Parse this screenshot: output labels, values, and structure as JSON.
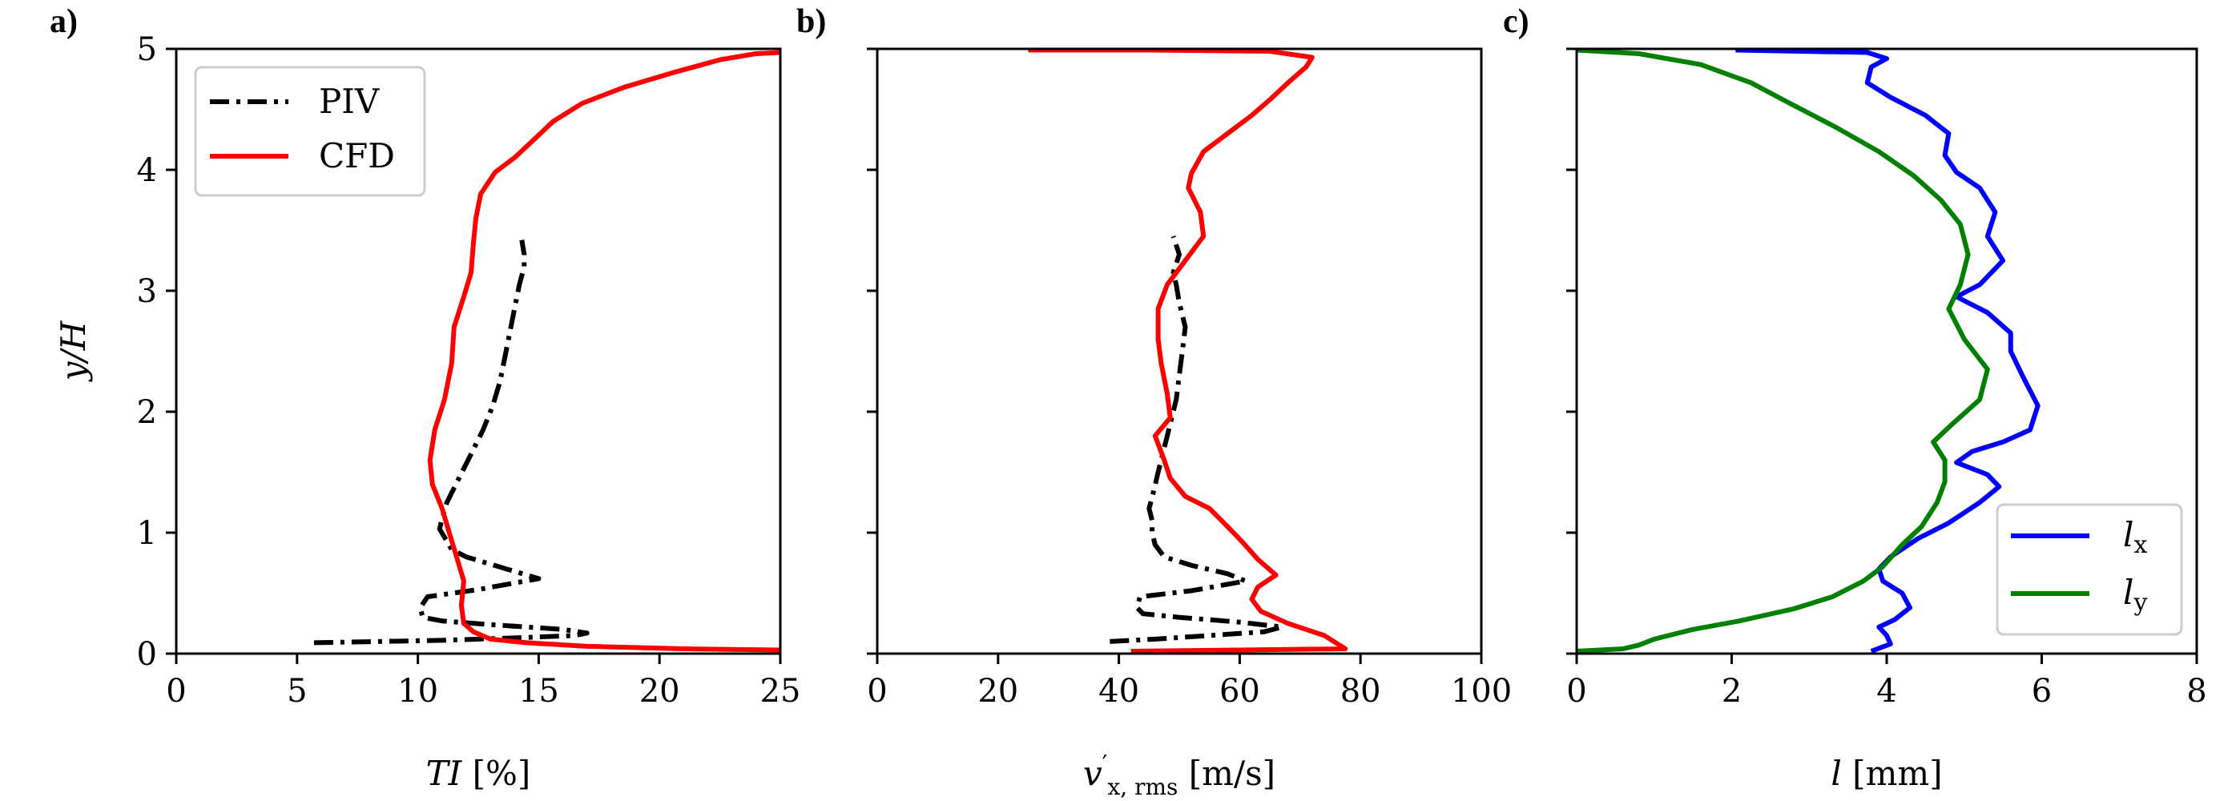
{
  "chart_data": [
    {
      "type": "line",
      "panel_label": "a)",
      "xlabel": "TI [%]",
      "xlabel_parts": {
        "main": "TI",
        "unit": " [%]"
      },
      "ylabel": "y/H",
      "ylabel_parts": {
        "main": "y/H"
      },
      "xlim": [
        0,
        25
      ],
      "ylim": [
        0,
        5
      ],
      "xticks": [
        0,
        5,
        10,
        15,
        20,
        25
      ],
      "xtick_labels": [
        "0",
        "5",
        "10",
        "15",
        "20",
        "25"
      ],
      "yticks": [
        0,
        1,
        2,
        3,
        4,
        5
      ],
      "ytick_labels": [
        "0",
        "1",
        "2",
        "3",
        "4",
        "5"
      ],
      "show_ytick_labels": true,
      "grid": false,
      "legend": {
        "placement": "top-left",
        "entries": [
          "PIV",
          "CFD"
        ]
      },
      "series": [
        {
          "name": "PIV",
          "color": "#000000",
          "style": "dashdot",
          "points": [
            [
              5.7,
              0.09
            ],
            [
              11.0,
              0.11
            ],
            [
              14.0,
              0.13
            ],
            [
              16.5,
              0.15
            ],
            [
              17.0,
              0.17
            ],
            [
              16.0,
              0.2
            ],
            [
              13.0,
              0.24
            ],
            [
              11.0,
              0.27
            ],
            [
              10.2,
              0.3
            ],
            [
              10.1,
              0.38
            ],
            [
              10.4,
              0.47
            ],
            [
              12.5,
              0.53
            ],
            [
              15.0,
              0.62
            ],
            [
              14.0,
              0.68
            ],
            [
              13.0,
              0.74
            ],
            [
              12.0,
              0.8
            ],
            [
              11.4,
              0.86
            ],
            [
              11.2,
              0.93
            ],
            [
              10.9,
              1.03
            ],
            [
              11.0,
              1.12
            ],
            [
              11.2,
              1.25
            ],
            [
              11.7,
              1.45
            ],
            [
              12.2,
              1.65
            ],
            [
              12.7,
              1.85
            ],
            [
              13.1,
              2.05
            ],
            [
              13.4,
              2.25
            ],
            [
              13.6,
              2.45
            ],
            [
              13.8,
              2.65
            ],
            [
              14.0,
              2.85
            ],
            [
              14.2,
              3.05
            ],
            [
              14.4,
              3.2
            ],
            [
              14.4,
              3.3
            ],
            [
              14.3,
              3.42
            ]
          ]
        },
        {
          "name": "CFD",
          "color": "#ff0000",
          "style": "solid",
          "points": [
            [
              25.0,
              0.03
            ],
            [
              21.0,
              0.04
            ],
            [
              17.0,
              0.06
            ],
            [
              14.5,
              0.09
            ],
            [
              13.0,
              0.12
            ],
            [
              12.3,
              0.18
            ],
            [
              11.9,
              0.25
            ],
            [
              11.8,
              0.4
            ],
            [
              11.9,
              0.6
            ],
            [
              11.6,
              0.8
            ],
            [
              11.3,
              1.0
            ],
            [
              11.0,
              1.2
            ],
            [
              10.6,
              1.4
            ],
            [
              10.5,
              1.6
            ],
            [
              10.7,
              1.85
            ],
            [
              11.1,
              2.1
            ],
            [
              11.4,
              2.4
            ],
            [
              11.5,
              2.7
            ],
            [
              11.9,
              2.95
            ],
            [
              12.2,
              3.15
            ],
            [
              12.3,
              3.4
            ],
            [
              12.4,
              3.6
            ],
            [
              12.6,
              3.8
            ],
            [
              13.2,
              3.98
            ],
            [
              14.0,
              4.1
            ],
            [
              14.8,
              4.25
            ],
            [
              15.6,
              4.4
            ],
            [
              16.8,
              4.55
            ],
            [
              18.5,
              4.68
            ],
            [
              20.5,
              4.8
            ],
            [
              22.5,
              4.91
            ],
            [
              24.0,
              4.96
            ],
            [
              25.0,
              4.97
            ]
          ]
        }
      ]
    },
    {
      "type": "line",
      "panel_label": "b)",
      "xlabel": "v'x, rms [m/s]",
      "xlabel_parts": {
        "main": "v",
        "prime": "′",
        "sub": "x, rms",
        "unit": " [m/s]"
      },
      "ylabel": "",
      "xlim": [
        0,
        100
      ],
      "ylim": [
        0,
        5
      ],
      "xticks": [
        0,
        20,
        40,
        60,
        80,
        100
      ],
      "xtick_labels": [
        "0",
        "20",
        "40",
        "60",
        "80",
        "100"
      ],
      "yticks": [
        0,
        1,
        2,
        3,
        4,
        5
      ],
      "show_ytick_labels": false,
      "grid": false,
      "series": [
        {
          "name": "PIV",
          "color": "#000000",
          "style": "dashdot",
          "points": [
            [
              38.5,
              0.1
            ],
            [
              46.0,
              0.12
            ],
            [
              55.0,
              0.15
            ],
            [
              64.0,
              0.18
            ],
            [
              67.0,
              0.22
            ],
            [
              60.0,
              0.26
            ],
            [
              50.0,
              0.3
            ],
            [
              44.0,
              0.33
            ],
            [
              43.0,
              0.38
            ],
            [
              43.5,
              0.47
            ],
            [
              52.0,
              0.52
            ],
            [
              61.0,
              0.6
            ],
            [
              58.0,
              0.66
            ],
            [
              52.0,
              0.73
            ],
            [
              47.5,
              0.8
            ],
            [
              46.0,
              0.9
            ],
            [
              45.5,
              1.0
            ],
            [
              45.5,
              1.1
            ],
            [
              45.0,
              1.2
            ],
            [
              45.8,
              1.35
            ],
            [
              46.5,
              1.5
            ],
            [
              47.5,
              1.7
            ],
            [
              48.5,
              1.9
            ],
            [
              49.5,
              2.1
            ],
            [
              50.0,
              2.3
            ],
            [
              50.5,
              2.5
            ],
            [
              51.0,
              2.7
            ],
            [
              50.0,
              2.9
            ],
            [
              49.5,
              3.05
            ],
            [
              49.0,
              3.15
            ],
            [
              50.0,
              3.3
            ],
            [
              49.0,
              3.45
            ]
          ]
        },
        {
          "name": "CFD",
          "color": "#ff0000",
          "style": "solid",
          "points": [
            [
              42.0,
              0.02
            ],
            [
              60.0,
              0.03
            ],
            [
              77.5,
              0.04
            ],
            [
              74.0,
              0.15
            ],
            [
              68.0,
              0.25
            ],
            [
              63.5,
              0.35
            ],
            [
              62.0,
              0.45
            ],
            [
              63.0,
              0.55
            ],
            [
              66.0,
              0.65
            ],
            [
              63.0,
              0.78
            ],
            [
              60.5,
              0.92
            ],
            [
              58.0,
              1.05
            ],
            [
              55.0,
              1.2
            ],
            [
              51.0,
              1.3
            ],
            [
              48.5,
              1.45
            ],
            [
              47.5,
              1.6
            ],
            [
              46.0,
              1.8
            ],
            [
              48.5,
              1.95
            ],
            [
              48.0,
              2.15
            ],
            [
              47.0,
              2.4
            ],
            [
              46.5,
              2.6
            ],
            [
              46.5,
              2.85
            ],
            [
              48.0,
              3.05
            ],
            [
              51.0,
              3.25
            ],
            [
              54.0,
              3.45
            ],
            [
              53.5,
              3.65
            ],
            [
              51.5,
              3.85
            ],
            [
              52.0,
              3.97
            ],
            [
              54.0,
              4.15
            ],
            [
              58.0,
              4.3
            ],
            [
              62.0,
              4.45
            ],
            [
              65.0,
              4.58
            ],
            [
              68.0,
              4.72
            ],
            [
              71.0,
              4.85
            ],
            [
              72.0,
              4.93
            ],
            [
              65.0,
              4.98
            ],
            [
              45.0,
              4.99
            ],
            [
              25.0,
              4.99
            ]
          ]
        }
      ]
    },
    {
      "type": "line",
      "panel_label": "c)",
      "xlabel": "l [mm]",
      "xlabel_parts": {
        "main": "l",
        "unit": " [mm]"
      },
      "ylabel": "",
      "xlim": [
        0,
        8
      ],
      "ylim": [
        0,
        5
      ],
      "xticks": [
        0,
        2,
        4,
        6,
        8
      ],
      "xtick_labels": [
        "0",
        "2",
        "4",
        "6",
        "8"
      ],
      "yticks": [
        0,
        1,
        2,
        3,
        4,
        5
      ],
      "show_ytick_labels": false,
      "grid": false,
      "legend": {
        "placement": "bottom-right",
        "entries": [
          "lx",
          "ly"
        ]
      },
      "series": [
        {
          "name": "lx",
          "legend_main": "l",
          "legend_sub": "x",
          "color": "#0000ff",
          "style": "solid",
          "points": [
            [
              3.8,
              0.02
            ],
            [
              4.05,
              0.08
            ],
            [
              4.0,
              0.15
            ],
            [
              3.9,
              0.22
            ],
            [
              4.1,
              0.28
            ],
            [
              4.3,
              0.38
            ],
            [
              4.2,
              0.5
            ],
            [
              3.95,
              0.6
            ],
            [
              3.9,
              0.7
            ],
            [
              4.05,
              0.8
            ],
            [
              4.4,
              0.95
            ],
            [
              4.8,
              1.08
            ],
            [
              5.2,
              1.25
            ],
            [
              5.45,
              1.38
            ],
            [
              5.3,
              1.48
            ],
            [
              4.9,
              1.58
            ],
            [
              5.1,
              1.67
            ],
            [
              5.5,
              1.75
            ],
            [
              5.85,
              1.85
            ],
            [
              5.95,
              2.05
            ],
            [
              5.75,
              2.3
            ],
            [
              5.6,
              2.5
            ],
            [
              5.6,
              2.65
            ],
            [
              5.3,
              2.82
            ],
            [
              4.9,
              2.95
            ],
            [
              5.2,
              3.05
            ],
            [
              5.5,
              3.25
            ],
            [
              5.3,
              3.45
            ],
            [
              5.4,
              3.65
            ],
            [
              5.2,
              3.85
            ],
            [
              4.9,
              3.98
            ],
            [
              4.75,
              4.12
            ],
            [
              4.8,
              4.3
            ],
            [
              4.5,
              4.45
            ],
            [
              4.05,
              4.6
            ],
            [
              3.75,
              4.72
            ],
            [
              3.8,
              4.85
            ],
            [
              4.0,
              4.92
            ],
            [
              3.75,
              4.97
            ],
            [
              2.05,
              4.99
            ]
          ]
        },
        {
          "name": "ly",
          "legend_main": "l",
          "legend_sub": "y",
          "color": "#008000",
          "style": "solid",
          "points": [
            [
              0.0,
              0.02
            ],
            [
              0.6,
              0.04
            ],
            [
              0.8,
              0.07
            ],
            [
              1.0,
              0.12
            ],
            [
              1.5,
              0.2
            ],
            [
              2.1,
              0.27
            ],
            [
              2.8,
              0.37
            ],
            [
              3.3,
              0.47
            ],
            [
              3.7,
              0.6
            ],
            [
              3.95,
              0.72
            ],
            [
              4.2,
              0.9
            ],
            [
              4.45,
              1.05
            ],
            [
              4.65,
              1.25
            ],
            [
              4.75,
              1.42
            ],
            [
              4.75,
              1.6
            ],
            [
              4.6,
              1.75
            ],
            [
              4.85,
              1.9
            ],
            [
              5.2,
              2.1
            ],
            [
              5.3,
              2.35
            ],
            [
              5.0,
              2.6
            ],
            [
              4.8,
              2.85
            ],
            [
              4.95,
              3.05
            ],
            [
              5.05,
              3.3
            ],
            [
              4.95,
              3.55
            ],
            [
              4.7,
              3.75
            ],
            [
              4.35,
              3.95
            ],
            [
              3.9,
              4.15
            ],
            [
              3.35,
              4.35
            ],
            [
              2.75,
              4.55
            ],
            [
              2.25,
              4.72
            ],
            [
              1.6,
              4.87
            ],
            [
              0.8,
              4.96
            ],
            [
              0.0,
              4.99
            ]
          ]
        }
      ]
    }
  ]
}
